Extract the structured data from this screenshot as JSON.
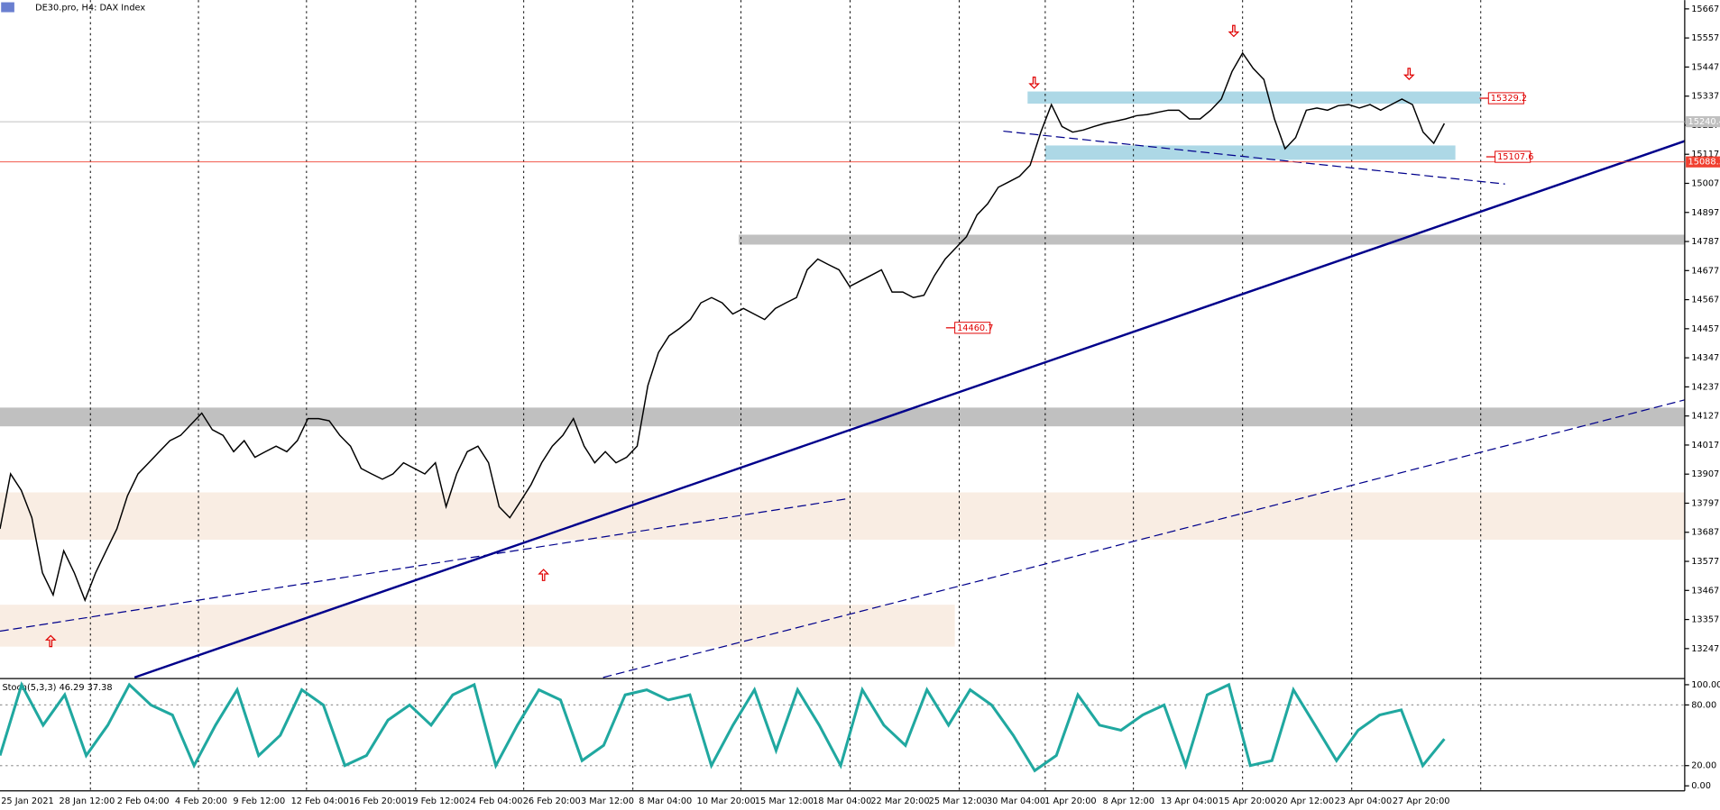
{
  "header": {
    "title": "DE30.pro, H4: DAX Index"
  },
  "chart_data": [
    {
      "type": "line",
      "x_labels": [
        "25 Jan 2021",
        "28 Jan 12:00",
        "2 Feb 04:00",
        "4 Feb 20:00",
        "9 Feb 12:00",
        "12 Feb 04:00",
        "16 Feb 20:00",
        "19 Feb 12:00",
        "24 Feb 04:00",
        "26 Feb 20:00",
        "3 Mar 12:00",
        "8 Mar 04:00",
        "10 Mar 20:00",
        "15 Mar 12:00",
        "18 Mar 04:00",
        "22 Mar 20:00",
        "25 Mar 12:00",
        "30 Mar 04:00",
        "1 Apr 20:00",
        "8 Apr 12:00",
        "13 Apr 04:00",
        "15 Apr 20:00",
        "20 Apr 12:00",
        "23 Apr 04:00",
        "27 Apr 20:00"
      ],
      "series": [
        {
          "color": "#000000",
          "values": [
            13700,
            13908,
            13846,
            13742,
            13534,
            13450,
            13617,
            13534,
            13430,
            13534,
            13617,
            13700,
            13825,
            13908,
            13950,
            13992,
            14034,
            14054,
            14096,
            14138,
            14075,
            14054,
            13992,
            14034,
            13971,
            13992,
            14013,
            13992,
            14034,
            14117,
            14117,
            14109,
            14054,
            14013,
            13929,
            13908,
            13888,
            13908,
            13950,
            13929,
            13908,
            13950,
            13784,
            13908,
            13992,
            14013,
            13950,
            13784,
            13742,
            13804,
            13867,
            13950,
            14013,
            14054,
            14117,
            14013,
            13950,
            13992,
            13950,
            13971,
            14013,
            14242,
            14367,
            14430,
            14459,
            14492,
            14555,
            14575,
            14555,
            14513,
            14534,
            14513,
            14492,
            14534,
            14555,
            14575,
            14680,
            14721,
            14700,
            14680,
            14617,
            14638,
            14659,
            14680,
            14596,
            14596,
            14575,
            14584,
            14659,
            14721,
            14763,
            14805,
            14888,
            14930,
            14992,
            15013,
            15034,
            15076,
            15201,
            15305,
            15222,
            15201,
            15209,
            15222,
            15234,
            15242,
            15251,
            15263,
            15267,
            15276,
            15284,
            15284,
            15251,
            15251,
            15284,
            15326,
            15430,
            15500,
            15442,
            15400,
            15251,
            15138,
            15180,
            15284,
            15292,
            15284,
            15301,
            15305,
            15292,
            15305,
            15284,
            15305,
            15326,
            15305,
            15201,
            15159,
            15234
          ]
        }
      ],
      "ylim": [
        13138,
        15700.5
      ],
      "yticks": [
        15667.2,
        15557.2,
        15447.2,
        15337.2,
        15227.2,
        15117.2,
        15007.2,
        14897.2,
        14787.2,
        14677.2,
        14567.2,
        14457.2,
        14347.2,
        14237.2,
        14127.2,
        14017.2,
        13907.2,
        13797.2,
        13687.2,
        13577.2,
        13467.2,
        13357.2,
        13247.2
      ],
      "price_labels": [
        {
          "value": 15329.2,
          "color": "#e00000"
        },
        {
          "value": 15107.6,
          "color": "#e00000"
        },
        {
          "value": 14460.7,
          "color": "#e00000"
        }
      ],
      "axis_labels": [
        {
          "value": 15240.4,
          "color": "#c0c0c0"
        },
        {
          "value": 15088.3,
          "color": "#f04030"
        }
      ]
    },
    {
      "type": "line",
      "title": "Stoch(5,3,3) 46.29 37.38",
      "series": [
        {
          "color": "#20a8a0",
          "values": [
            30,
            100,
            60,
            90,
            30,
            60,
            100,
            80,
            70,
            20,
            60,
            95,
            30,
            50,
            95,
            80,
            20,
            30,
            65,
            80,
            60,
            90,
            100,
            20,
            60,
            95,
            85,
            25,
            40,
            90,
            95,
            85,
            90,
            20,
            60,
            95,
            35,
            95,
            60,
            20,
            95,
            60,
            40,
            95,
            60,
            95,
            80,
            50,
            15,
            30,
            90,
            60,
            55,
            70,
            80,
            20,
            90,
            100,
            20,
            25,
            95,
            60,
            25,
            55,
            70,
            75,
            20,
            46.29
          ]
        }
      ],
      "ylim": [
        -5,
        105
      ],
      "yticks": [
        {
          "value": 100,
          "label": "100.00"
        },
        {
          "value": 80,
          "label": "80.00"
        },
        {
          "value": 20,
          "label": "20.00"
        },
        {
          "value": 0,
          "label": "0.00"
        }
      ]
    }
  ]
}
